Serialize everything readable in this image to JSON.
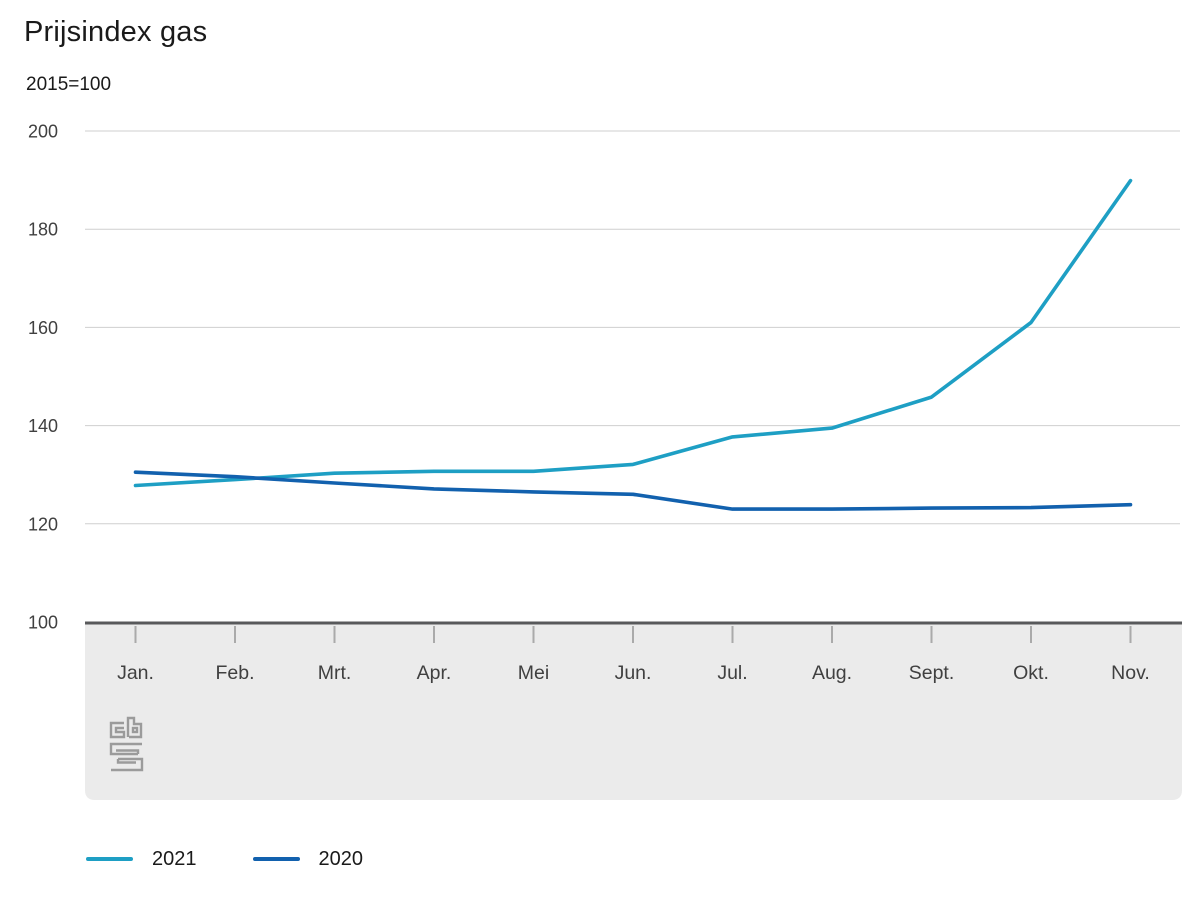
{
  "header": {
    "title": "Prijsindex gas",
    "subtitle": "2015=100"
  },
  "chart_data": {
    "type": "line",
    "title": "Prijsindex gas",
    "subtitle": "2015=100",
    "categories": [
      "Jan.",
      "Feb.",
      "Mrt.",
      "Apr.",
      "Mei",
      "Jun.",
      "Jul.",
      "Aug.",
      "Sept.",
      "Okt.",
      "Nov."
    ],
    "series": [
      {
        "name": "2021",
        "color": "#1e9fc4",
        "values": [
          127.8,
          129.0,
          130.3,
          130.7,
          130.7,
          132.1,
          137.7,
          139.5,
          145.8,
          161.0,
          189.9
        ]
      },
      {
        "name": "2020",
        "color": "#1261ae",
        "values": [
          130.5,
          129.6,
          128.3,
          127.1,
          126.5,
          126.0,
          123.0,
          123.0,
          123.2,
          123.3,
          123.9
        ]
      }
    ],
    "ylim": [
      100,
      200
    ],
    "yticks": [
      100,
      120,
      140,
      160,
      180,
      200
    ],
    "grid": true,
    "legend_position": "bottom",
    "colors": {
      "gridline": "#cfcfcf",
      "axis_line": "#58595b",
      "tick": "#aaaaaa",
      "plot_band": "#ebebeb",
      "axis_text": "#404040",
      "logo": "#9b9b9b"
    }
  },
  "footer": {
    "logo": "cbs-logo"
  }
}
